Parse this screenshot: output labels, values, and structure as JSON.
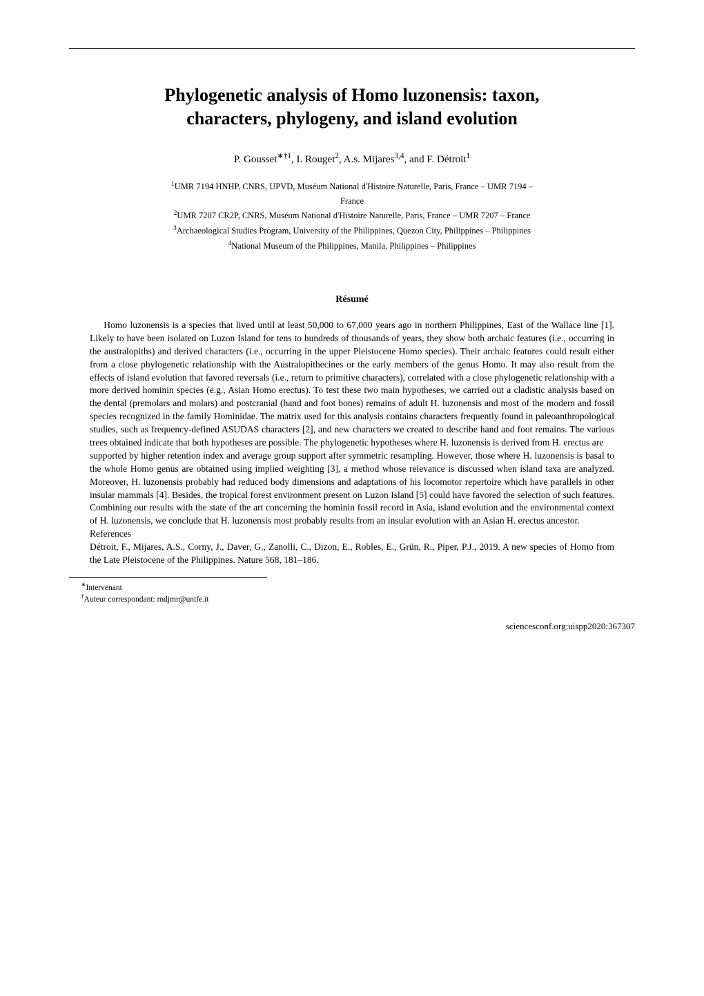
{
  "title_line1": "Phylogenetic analysis of Homo luzonensis: taxon,",
  "title_line2": "characters, phylogeny, and island evolution",
  "authors_html": "P. Gousset",
  "author1_sup": "∗†1",
  "author2": ", I. Rouget",
  "author2_sup": "2",
  "author3": ", A.s. Mijares",
  "author3_sup": "3,4",
  "author4": ", and F. Détroit",
  "author4_sup": "1",
  "affil1_sup": "1",
  "affil1": "UMR 7194 HNHP, CNRS, UPVD, Muséum National d'Histoire Naturelle, Paris, France – UMR 7194 –",
  "affil1b": "France",
  "affil2_sup": "2",
  "affil2": "UMR 7207 CR2P, CNRS, Muséum National d'Histoire Naturelle, Paris, France – UMR 7207 – France",
  "affil3_sup": "3",
  "affil3": "Archaeological Studies Program, University of the Philippines, Quezon City, Philippines – Philippines",
  "affil4_sup": "4",
  "affil4": "National Museum of the Philippines, Manila, Philippines – Philippines",
  "resume_label": "Résumé",
  "para1": "Homo luzonensis is a species that lived until at least 50,000 to 67,000 years ago in northern Philippines, East of the Wallace line [1]. Likely to have been isolated on Luzon Island for tens to hundreds of thousands of years, they show both archaic features (i.e., occurring in the australopiths) and derived characters (i.e., occurring in the upper Pleistocene Homo species). Their archaic features could result either from a close phylogenetic relationship with the Australopithecines or the early members of the genus Homo. It may also result from the effects of island evolution that favored reversals (i.e., return to primitive characters), correlated with a close phylogenetic relationship with a more derived hominin species (e.g., Asian Homo erectus). To test these two main hypotheses, we carried out a cladistic analysis based on the dental (premolars and molars) and postcranial (hand and foot bones) remains of adult H. luzonensis and most of the modern and fossil species recognized in the family Hominidae. The matrix used for this analysis contains characters frequently found in paleoanthropological studies, such as frequency-defined ASUDAS characters [2], and new characters we created to describe hand and foot remains. The various trees obtained indicate that both hypotheses are possible. The phylogenetic hypotheses where H. luzonensis is derived from H. erectus are",
  "para2": "supported by higher retention index and average group support after symmetric resampling. However, those where H. luzonensis is basal to the whole Homo genus are obtained using implied weighting [3], a method whose relevance is discussed when island taxa are analyzed. Moreover, H. luzonensis probably had reduced body dimensions and adaptations of his locomotor repertoire which have parallels in other insular mammals [4]. Besides, the tropical forest environment present on Luzon Island [5] could have favored the selection of such features. Combining our results with the state of the art concerning the hominin fossil record in Asia, island evolution and the environmental context of H. luzonensis, we conclude that H. luzonensis most probably results from an insular evolution with an Asian H. erectus ancestor.",
  "refs_label": "References",
  "ref1": "Détroit, F., Mijares, A.S., Corny, J., Daver, G., Zanolli, C., Dizon, E., Robles, E., Grün, R., Piper, P.J., 2019. A new species of Homo from the Late Pleistocene of the Philippines. Nature 568, 181–186.",
  "fn1_sup": "∗",
  "fn1": "Intervenant",
  "fn2_sup": "†",
  "fn2": "Auteur correspondant: rndjmr@unife.it",
  "footer": "sciencesconf.org:uispp2020:367307"
}
